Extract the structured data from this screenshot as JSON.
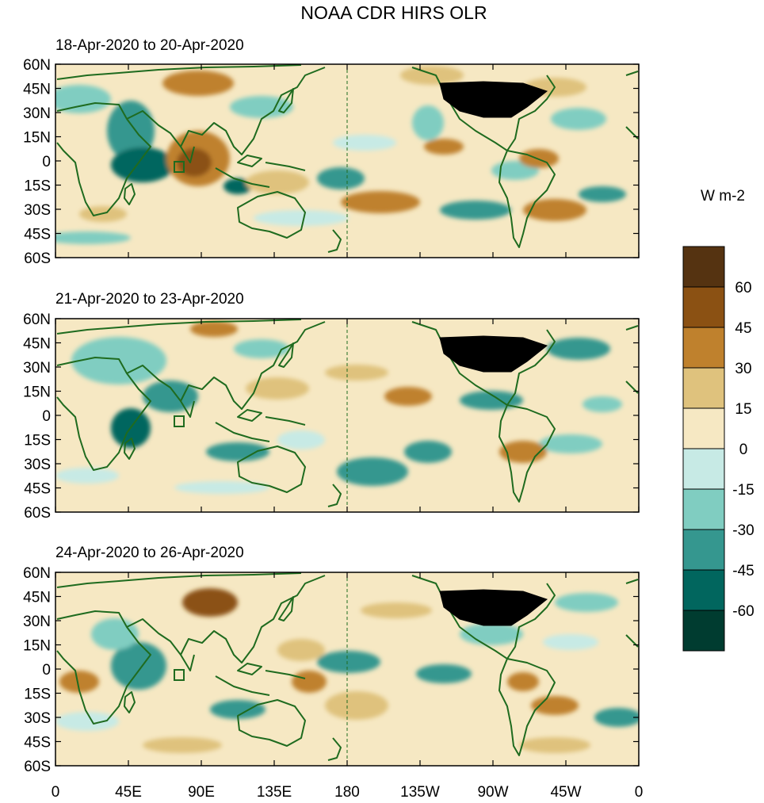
{
  "figure": {
    "title": "NOAA CDR HIRS OLR",
    "colorbar_units": "W m-2"
  },
  "panels": [
    {
      "title": "18-Apr-2020 to 20-Apr-2020"
    },
    {
      "title": "21-Apr-2020 to 23-Apr-2020"
    },
    {
      "title": "24-Apr-2020 to 26-Apr-2020"
    }
  ],
  "axes": {
    "lat_labels": [
      "60N",
      "45N",
      "30N",
      "15N",
      "0",
      "15S",
      "30S",
      "45S",
      "60S"
    ],
    "lon_labels": [
      "0",
      "45E",
      "90E",
      "135E",
      "180",
      "135W",
      "90W",
      "45W",
      "0"
    ]
  },
  "colorbar": {
    "labels": [
      "60",
      "45",
      "30",
      "15",
      "0",
      "-15",
      "-30",
      "-45",
      "-60"
    ],
    "colors": [
      "#553311",
      "#8b5113",
      "#bf812d",
      "#dfc27d",
      "#f6e8c3",
      "#c7eae5",
      "#80cdc1",
      "#35978f",
      "#01665e",
      "#003c30"
    ]
  },
  "palette": {
    "coast": "#1f6b1f",
    "land_dark": "#000000",
    "base": "#f6e8c3"
  }
}
